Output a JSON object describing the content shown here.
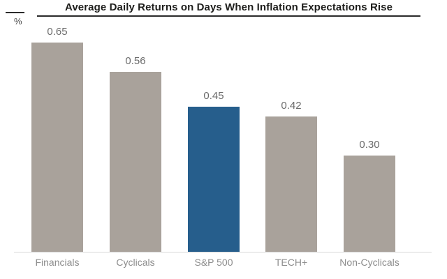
{
  "header": {
    "title": "Average Daily Returns on Days When Inflation Expectations Rise",
    "y_unit_label": "%"
  },
  "chart_data": {
    "type": "bar",
    "title": "Average Daily Returns on Days When Inflation Expectations Rise",
    "categories": [
      "Financials",
      "Cyclicals",
      "S&P 500",
      "TECH+",
      "Non-Cyclicals"
    ],
    "values": [
      0.65,
      0.56,
      0.45,
      0.42,
      0.3
    ],
    "value_labels": [
      "0.65",
      "0.56",
      "0.45",
      "0.42",
      "0.30"
    ],
    "xlabel": "",
    "ylabel": "%",
    "ylim": [
      0,
      0.72
    ],
    "grid": false,
    "legend": "none",
    "highlight_index": 2,
    "highlight_category": "S&P 500",
    "colors": {
      "bar_default": "#a9a29b",
      "bar_highlight": "#265e8c",
      "title_text": "#1d1d1b",
      "title_rule": "#2b2b2b",
      "value_label": "#6b6b6b",
      "category_label": "#8c8c8c",
      "baseline": "#d9d9d9",
      "background": "#ffffff"
    }
  }
}
